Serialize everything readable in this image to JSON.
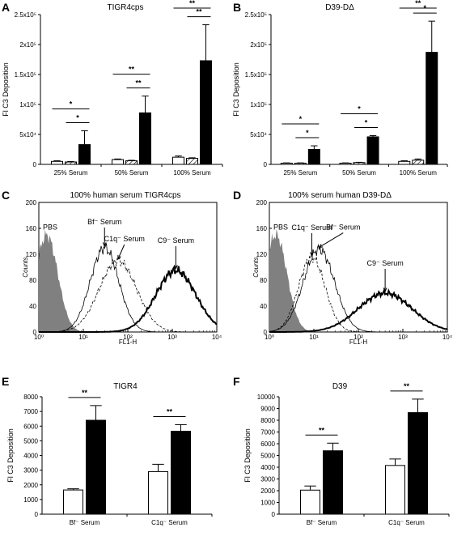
{
  "chart_data": [
    {
      "panel": "A",
      "type": "bar",
      "title": "TIGR4cps",
      "ylabel": "Fl C3 Deposition",
      "ytick_labels": [
        "0",
        "5x10⁴",
        "1x10⁵",
        "1.5x10⁵",
        "2x10⁵",
        "2.5x10⁵"
      ],
      "ylim": [
        0,
        250000
      ],
      "categories": [
        "25% Serum",
        "50% Serum",
        "100% Serum"
      ],
      "series": [
        {
          "fill": "white",
          "values": [
            5000,
            8000,
            12000
          ],
          "errors": [
            1000,
            1000,
            2000
          ]
        },
        {
          "fill": "hatched",
          "values": [
            4000,
            6000,
            10000
          ],
          "errors": [
            800,
            800,
            1000
          ]
        },
        {
          "fill": "black",
          "values": [
            33000,
            86000,
            173000
          ],
          "errors": [
            23000,
            28000,
            60000
          ]
        }
      ],
      "significance": [
        {
          "category": 0,
          "from": 0,
          "to": 2,
          "label": "*"
        },
        {
          "category": 0,
          "from": 1,
          "to": 2,
          "label": "*"
        },
        {
          "category": 1,
          "from": 0,
          "to": 2,
          "label": "**"
        },
        {
          "category": 1,
          "from": 1,
          "to": 2,
          "label": "**"
        },
        {
          "category": 2,
          "from": 0,
          "to": 2,
          "label": "**"
        },
        {
          "category": 2,
          "from": 1,
          "to": 2,
          "label": "**"
        }
      ]
    },
    {
      "panel": "B",
      "type": "bar",
      "title": "D39-DΔ",
      "ylabel": "Fl C3 Deposition",
      "ytick_labels": [
        "0",
        "5x10⁴",
        "1x10⁵",
        "1.5x10⁵",
        "2x10⁵",
        "2.5x10⁵"
      ],
      "ylim": [
        0,
        250000
      ],
      "categories": [
        "25% Serum",
        "50% Serum",
        "100% Serum"
      ],
      "series": [
        {
          "fill": "white",
          "values": [
            2000,
            2000,
            5000
          ],
          "errors": [
            500,
            500,
            1000
          ]
        },
        {
          "fill": "hatched",
          "values": [
            2000,
            3000,
            7000
          ],
          "errors": [
            500,
            500,
            2000
          ]
        },
        {
          "fill": "black",
          "values": [
            25000,
            46000,
            187000
          ],
          "errors": [
            6000,
            2000,
            52000
          ]
        }
      ],
      "significance": [
        {
          "category": 0,
          "from": 0,
          "to": 2,
          "label": "*"
        },
        {
          "category": 0,
          "from": 1,
          "to": 2,
          "label": "*"
        },
        {
          "category": 1,
          "from": 0,
          "to": 2,
          "label": "*"
        },
        {
          "category": 1,
          "from": 1,
          "to": 2,
          "label": "*"
        },
        {
          "category": 2,
          "from": 0,
          "to": 2,
          "label": "**"
        },
        {
          "category": 2,
          "from": 1,
          "to": 2,
          "label": "*"
        }
      ]
    },
    {
      "panel": "C",
      "type": "line",
      "title": "100% human serum TIGR4cps",
      "xlabel": "FL1-H",
      "ylabel": "Counts",
      "xscale": "log",
      "xlim": [
        1,
        10000
      ],
      "ylim": [
        0,
        200
      ],
      "xtick_labels": [
        "10⁰",
        "10¹",
        "10²",
        "10³",
        "10⁴"
      ],
      "ytick_labels": [
        "0",
        "40",
        "80",
        "120",
        "160",
        "200"
      ],
      "series": [
        {
          "name": "PBS",
          "style": "filled-gray",
          "peak_x": 1.5,
          "peak_y": 150,
          "width": 0.25
        },
        {
          "name": "Bf⁻ Serum",
          "style": "thin",
          "peak_x": 30,
          "peak_y": 130,
          "width": 0.32
        },
        {
          "name": "C1q⁻ Serum",
          "style": "dashed",
          "peak_x": 60,
          "peak_y": 110,
          "width": 0.42
        },
        {
          "name": "C9⁻ Serum",
          "style": "thick",
          "peak_x": 1200,
          "peak_y": 95,
          "width": 0.45
        }
      ]
    },
    {
      "panel": "D",
      "type": "line",
      "title": "100% serum human D39-DΔ",
      "xlabel": "FL1-H",
      "ylabel": "Counts",
      "xscale": "log",
      "xlim": [
        1,
        10000
      ],
      "ylim": [
        0,
        200
      ],
      "xtick_labels": [
        "10⁰",
        "10¹",
        "10²",
        "10³",
        "10⁴"
      ],
      "ytick_labels": [
        "0",
        "40",
        "80",
        "120",
        "160",
        "200"
      ],
      "series": [
        {
          "name": "PBS",
          "style": "filled-gray",
          "peak_x": 1.4,
          "peak_y": 150,
          "width": 0.25
        },
        {
          "name": "C1q⁻ Serum",
          "style": "dashed",
          "peak_x": 9,
          "peak_y": 115,
          "width": 0.3
        },
        {
          "name": "Bf⁻ Serum",
          "style": "thin",
          "peak_x": 13,
          "peak_y": 128,
          "width": 0.35
        },
        {
          "name": "C9⁻ Serum",
          "style": "thick",
          "peak_x": 400,
          "peak_y": 60,
          "width": 0.6
        }
      ]
    },
    {
      "panel": "E",
      "type": "bar",
      "title": "TIGR4",
      "ylabel": "Fl C3 Deposition",
      "ylim": [
        0,
        8000
      ],
      "yticks": [
        0,
        1000,
        2000,
        3000,
        4000,
        5000,
        6000,
        7000,
        8000
      ],
      "categories": [
        "Bf⁻ Serum",
        "C1q⁻ Serum"
      ],
      "series": [
        {
          "fill": "white",
          "values": [
            1650,
            2900
          ],
          "errors": [
            80,
            500
          ]
        },
        {
          "fill": "black",
          "values": [
            6400,
            5650
          ],
          "errors": [
            1000,
            450
          ]
        }
      ],
      "significance": [
        {
          "category": 0,
          "label": "**"
        },
        {
          "category": 1,
          "label": "**"
        }
      ]
    },
    {
      "panel": "F",
      "type": "bar",
      "title": "D39",
      "ylabel": "Fl C3 Deposition",
      "ylim": [
        0,
        10000
      ],
      "yticks": [
        0,
        1000,
        2000,
        3000,
        4000,
        5000,
        6000,
        7000,
        8000,
        9000,
        10000
      ],
      "categories": [
        "Bf⁻ Serum",
        "C1q⁻ Serum"
      ],
      "series": [
        {
          "fill": "white",
          "values": [
            2050,
            4150
          ],
          "errors": [
            350,
            550
          ]
        },
        {
          "fill": "black",
          "values": [
            5400,
            8650
          ],
          "errors": [
            650,
            1150
          ]
        }
      ],
      "significance": [
        {
          "category": 0,
          "label": "**"
        },
        {
          "category": 1,
          "label": "**"
        }
      ]
    }
  ],
  "panel_labels": [
    "A",
    "B",
    "C",
    "D",
    "E",
    "F"
  ],
  "flow_labels": {
    "pbs": "PBS"
  }
}
